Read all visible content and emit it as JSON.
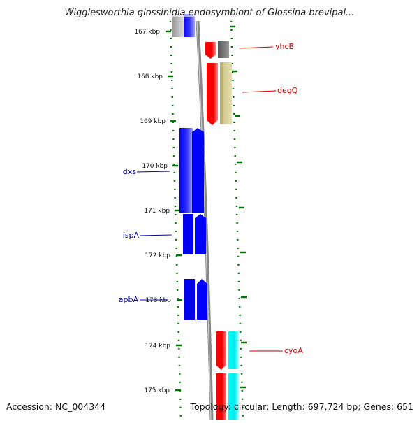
{
  "title": "Wigglesworthia glossinidia endosymbiont of Glossina brevipal...",
  "footer": {
    "accession": "Accession: NC_004344",
    "summary": "Topology: circular; Length: 697,724 bp; Genes: 651"
  },
  "ticks": [
    {
      "kbp": 167,
      "label": "167 kbp"
    },
    {
      "kbp": 168,
      "label": "168 kbp"
    },
    {
      "kbp": 169,
      "label": "169 kbp"
    },
    {
      "kbp": 170,
      "label": "170 kbp"
    },
    {
      "kbp": 171,
      "label": "171 kbp"
    },
    {
      "kbp": 172,
      "label": "172 kbp"
    },
    {
      "kbp": 173,
      "label": "173 kbp"
    },
    {
      "kbp": 174,
      "label": "174 kbp"
    },
    {
      "kbp": 175,
      "label": "175 kbp"
    }
  ],
  "genes": [
    {
      "label": "yhcB",
      "color": "#cc0000"
    },
    {
      "label": "degQ",
      "color": "#cc0000"
    },
    {
      "label": "dxs",
      "color": "#0000aa"
    },
    {
      "label": "ispA",
      "color": "#0000aa"
    },
    {
      "label": "apbA",
      "color": "#0000aa"
    },
    {
      "label": "cyoA",
      "color": "#cc0000"
    }
  ],
  "colors": {
    "forward_inner": "#ff0000",
    "forward_outer_1": "#555555",
    "forward_outer_2": "#b8b070",
    "forward_outer_3": "#00ffff",
    "reverse": "#0000ff",
    "backbone": "#888888",
    "tick": "#007700"
  }
}
